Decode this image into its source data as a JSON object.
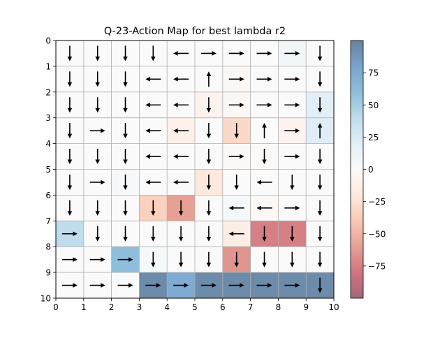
{
  "chart_data": {
    "type": "heatmap",
    "title": "Q-23-Action Map for best lambda r2",
    "xlabel": "",
    "ylabel": "",
    "xlim": [
      0,
      10
    ],
    "ylim": [
      10,
      0
    ],
    "x_ticks": [
      "0",
      "1",
      "2",
      "3",
      "4",
      "5",
      "6",
      "7",
      "8",
      "9",
      "10"
    ],
    "y_ticks": [
      "0",
      "1",
      "2",
      "3",
      "4",
      "5",
      "6",
      "7",
      "8",
      "9",
      "10"
    ],
    "colorbar": {
      "colormap": "RdBu",
      "alpha": 0.6,
      "vmin": -100,
      "vmax": 100,
      "ticks": [
        "75",
        "50",
        "25",
        "0",
        "−25",
        "−50",
        "−75"
      ],
      "tick_values": [
        75,
        50,
        25,
        0,
        -25,
        -50,
        -75
      ]
    },
    "grid": true,
    "values": [
      [
        0,
        0,
        0,
        0,
        0,
        0,
        0,
        0,
        8,
        0
      ],
      [
        0,
        0,
        0,
        0,
        0,
        0,
        -4,
        0,
        0,
        0
      ],
      [
        0,
        0,
        0,
        0,
        0,
        -8,
        -4,
        0,
        0,
        20
      ],
      [
        0,
        0,
        0,
        0,
        -12,
        0,
        -30,
        0,
        -8,
        22
      ],
      [
        0,
        0,
        0,
        0,
        0,
        0,
        -2,
        -2,
        0,
        0
      ],
      [
        0,
        0,
        4,
        0,
        0,
        -20,
        0,
        0,
        0,
        0
      ],
      [
        0,
        0,
        0,
        -35,
        -60,
        0,
        5,
        -3,
        0,
        0
      ],
      [
        40,
        0,
        0,
        0,
        0,
        0,
        -15,
        -75,
        -75,
        0
      ],
      [
        0,
        0,
        60,
        5,
        0,
        0,
        -65,
        0,
        0,
        0
      ],
      [
        0,
        0,
        0,
        95,
        75,
        95,
        95,
        95,
        95,
        95
      ]
    ],
    "actions": [
      [
        "down",
        "down",
        "down",
        "down",
        "left",
        "right",
        "right",
        "right",
        "right",
        "down"
      ],
      [
        "down",
        "down",
        "down",
        "left",
        "left",
        "up",
        "right",
        "right",
        "right",
        "down"
      ],
      [
        "down",
        "down",
        "down",
        "left",
        "left",
        "down",
        "right",
        "right",
        "right",
        "down"
      ],
      [
        "down",
        "right",
        "down",
        "left",
        "left",
        "down",
        "down",
        "up",
        "right",
        "up"
      ],
      [
        "down",
        "down",
        "down",
        "left",
        "left",
        "down",
        "right",
        "down",
        "right",
        "down"
      ],
      [
        "down",
        "right",
        "down",
        "left",
        "left",
        "down",
        "down",
        "left",
        "down",
        "down"
      ],
      [
        "down",
        "down",
        "down",
        "down",
        "down",
        "down",
        "left",
        "left",
        "right",
        "down"
      ],
      [
        "right",
        "down",
        "down",
        "down",
        "down",
        "down",
        "left",
        "down",
        "down",
        "down"
      ],
      [
        "right",
        "right",
        "right",
        "down",
        "down",
        "down",
        "down",
        "down",
        "down",
        "down"
      ],
      [
        "right",
        "right",
        "right",
        "right",
        "right",
        "right",
        "right",
        "right",
        "right",
        "down"
      ]
    ]
  }
}
